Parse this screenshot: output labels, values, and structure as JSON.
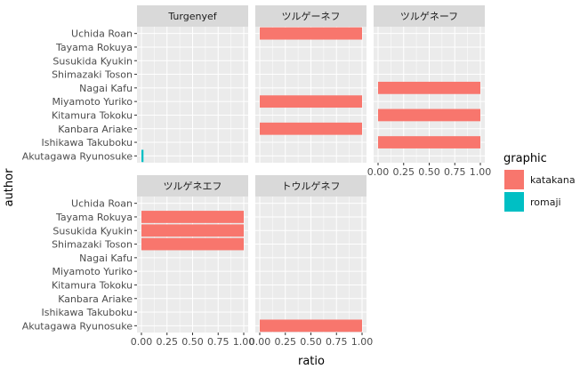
{
  "chart_data": {
    "type": "bar",
    "orientation": "horizontal",
    "xlabel": "ratio",
    "ylabel": "author",
    "xlim": [
      0,
      1
    ],
    "x_ticks": [
      "0.00",
      "0.25",
      "0.50",
      "0.75",
      "1.00"
    ],
    "authors": [
      "Uchida Roan",
      "Tayama Rokuya",
      "Susukida Kyukin",
      "Shimazaki Toson",
      "Nagai Kafu",
      "Miyamoto Yuriko",
      "Kitamura Tokoku",
      "Kanbara Ariake",
      "Ishikawa Takuboku",
      "Akutagawa Ryunosuke"
    ],
    "legend": {
      "title": "graphic",
      "position": "right",
      "items": [
        {
          "label": "katakana",
          "color": "#F8766D"
        },
        {
          "label": "romaji",
          "color": "#00BFC4"
        }
      ]
    },
    "panels": [
      {
        "title": "Turgenyef",
        "bars": [
          {
            "author": "Akutagawa Ryunosuke",
            "graphic": "romaji",
            "value": 0.02
          }
        ]
      },
      {
        "title": "ツルゲーネフ",
        "bars": [
          {
            "author": "Uchida Roan",
            "graphic": "katakana",
            "value": 1.0
          },
          {
            "author": "Miyamoto Yuriko",
            "graphic": "katakana",
            "value": 1.0
          },
          {
            "author": "Kanbara Ariake",
            "graphic": "katakana",
            "value": 1.0
          }
        ]
      },
      {
        "title": "ツルゲネーフ",
        "bars": [
          {
            "author": "Nagai Kafu",
            "graphic": "katakana",
            "value": 1.0
          },
          {
            "author": "Kitamura Tokoku",
            "graphic": "katakana",
            "value": 1.0
          },
          {
            "author": "Ishikawa Takuboku",
            "graphic": "katakana",
            "value": 1.0
          }
        ]
      },
      {
        "title": "ツルゲネエフ",
        "bars": [
          {
            "author": "Tayama Rokuya",
            "graphic": "katakana",
            "value": 1.0
          },
          {
            "author": "Susukida Kyukin",
            "graphic": "katakana",
            "value": 1.0
          },
          {
            "author": "Shimazaki Toson",
            "graphic": "katakana",
            "value": 1.0
          }
        ]
      },
      {
        "title": "トウルゲネフ",
        "bars": [
          {
            "author": "Akutagawa Ryunosuke",
            "graphic": "katakana",
            "value": 1.0
          }
        ]
      }
    ]
  }
}
